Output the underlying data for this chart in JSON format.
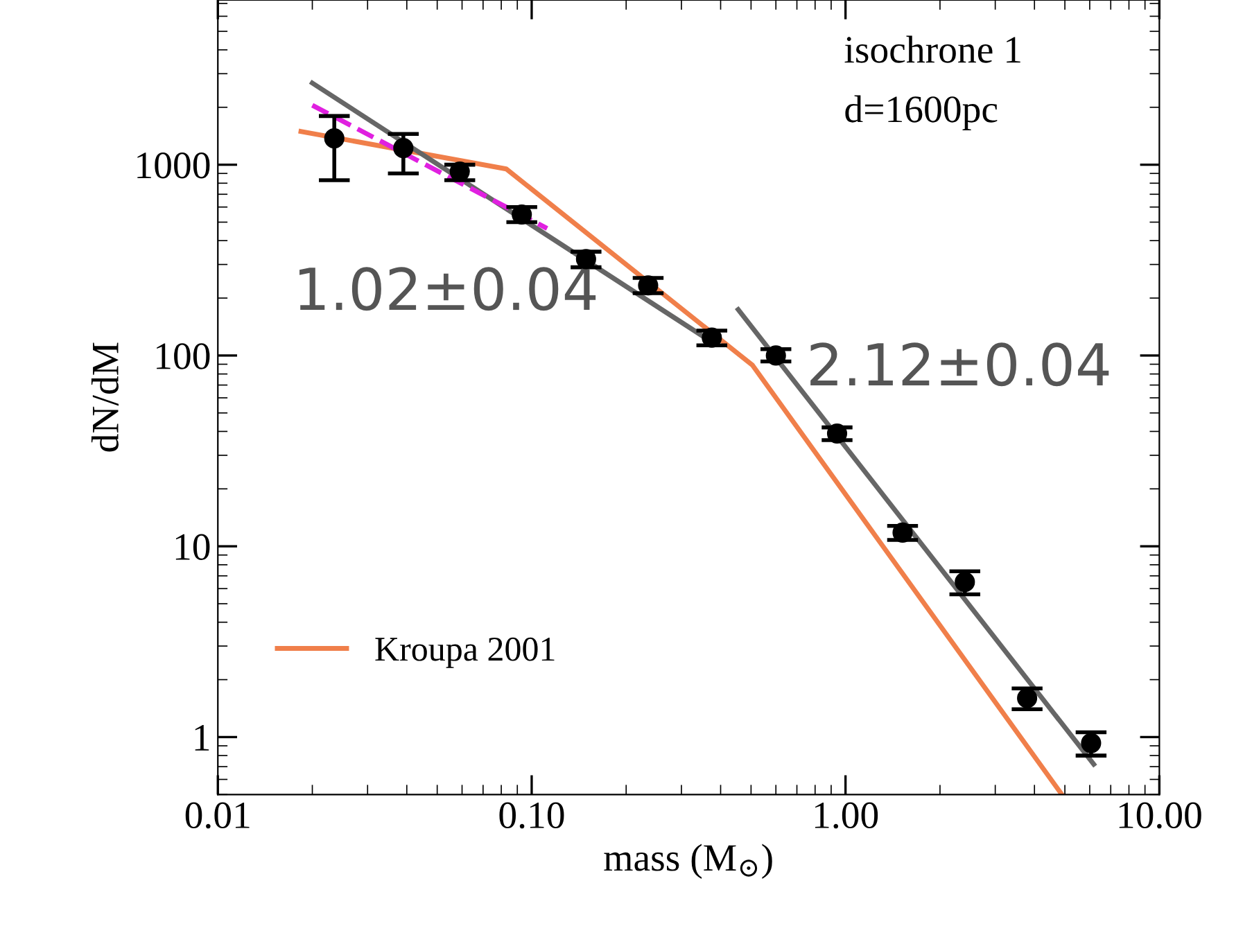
{
  "chart_data": {
    "type": "scatter",
    "xlabel": "mass (M$_{⊙}$)",
    "ylabel": "dN/dM",
    "log": "xy",
    "xlim": [
      0.01,
      10
    ],
    "ylim": [
      0.5,
      7300
    ],
    "xticks": [
      0.01,
      {
        "value": 0.1,
        "label": "0.10"
      },
      {
        "value": 1,
        "label": "1.00"
      },
      {
        "value": 10,
        "label": "10.00"
      }
    ],
    "yticks": [
      1,
      10,
      100,
      1000
    ],
    "grid": false,
    "legend": "bottom left",
    "annotations": [
      "isochrone 1",
      "d=1600pc",
      "1.02±0.04",
      "2.12±0.04"
    ],
    "series": [
      {
        "color": "#000000",
        "marker": "circle",
        "x": [
          0.0235,
          0.039,
          0.059,
          0.093,
          0.149,
          0.235,
          0.375,
          0.6,
          0.94,
          1.52,
          2.4,
          3.79,
          6.06
        ],
        "values": [
          1374,
          1222,
          920,
          548,
          320,
          233,
          124,
          100,
          39,
          11.8,
          6.5,
          1.6,
          0.93
        ],
        "errors": [
          [
            830,
            1800
          ],
          [
            900,
            1450
          ],
          [
            830,
            1000
          ],
          [
            500,
            600
          ],
          [
            290,
            350
          ],
          [
            212,
            255
          ],
          [
            113,
            135
          ],
          [
            93,
            108
          ],
          [
            36,
            42
          ],
          [
            10.8,
            12.8
          ],
          [
            5.6,
            7.4
          ],
          [
            1.4,
            1.8
          ],
          [
            0.8,
            1.06
          ]
        ]
      },
      {
        "type": "line",
        "name": "Kroupa 2001",
        "color": "#f07f4a",
        "x": [
          0.0184,
          0.083,
          0.505,
          4.89
        ],
        "values": [
          1494,
          950,
          89,
          0.5
        ]
      },
      {
        "type": "line",
        "color": "#666666",
        "x": [
          0.02,
          0.38
        ],
        "values": [
          2680,
          116
        ]
      },
      {
        "type": "line",
        "color": "#666666",
        "x": [
          0.455,
          6.18
        ],
        "values": [
          174,
          0.72
        ]
      },
      {
        "type": "line",
        "color": "#e020e0",
        "line_style": "dashed",
        "x": [
          0.02,
          0.112
        ],
        "values": [
          2050,
          463
        ]
      }
    ]
  }
}
